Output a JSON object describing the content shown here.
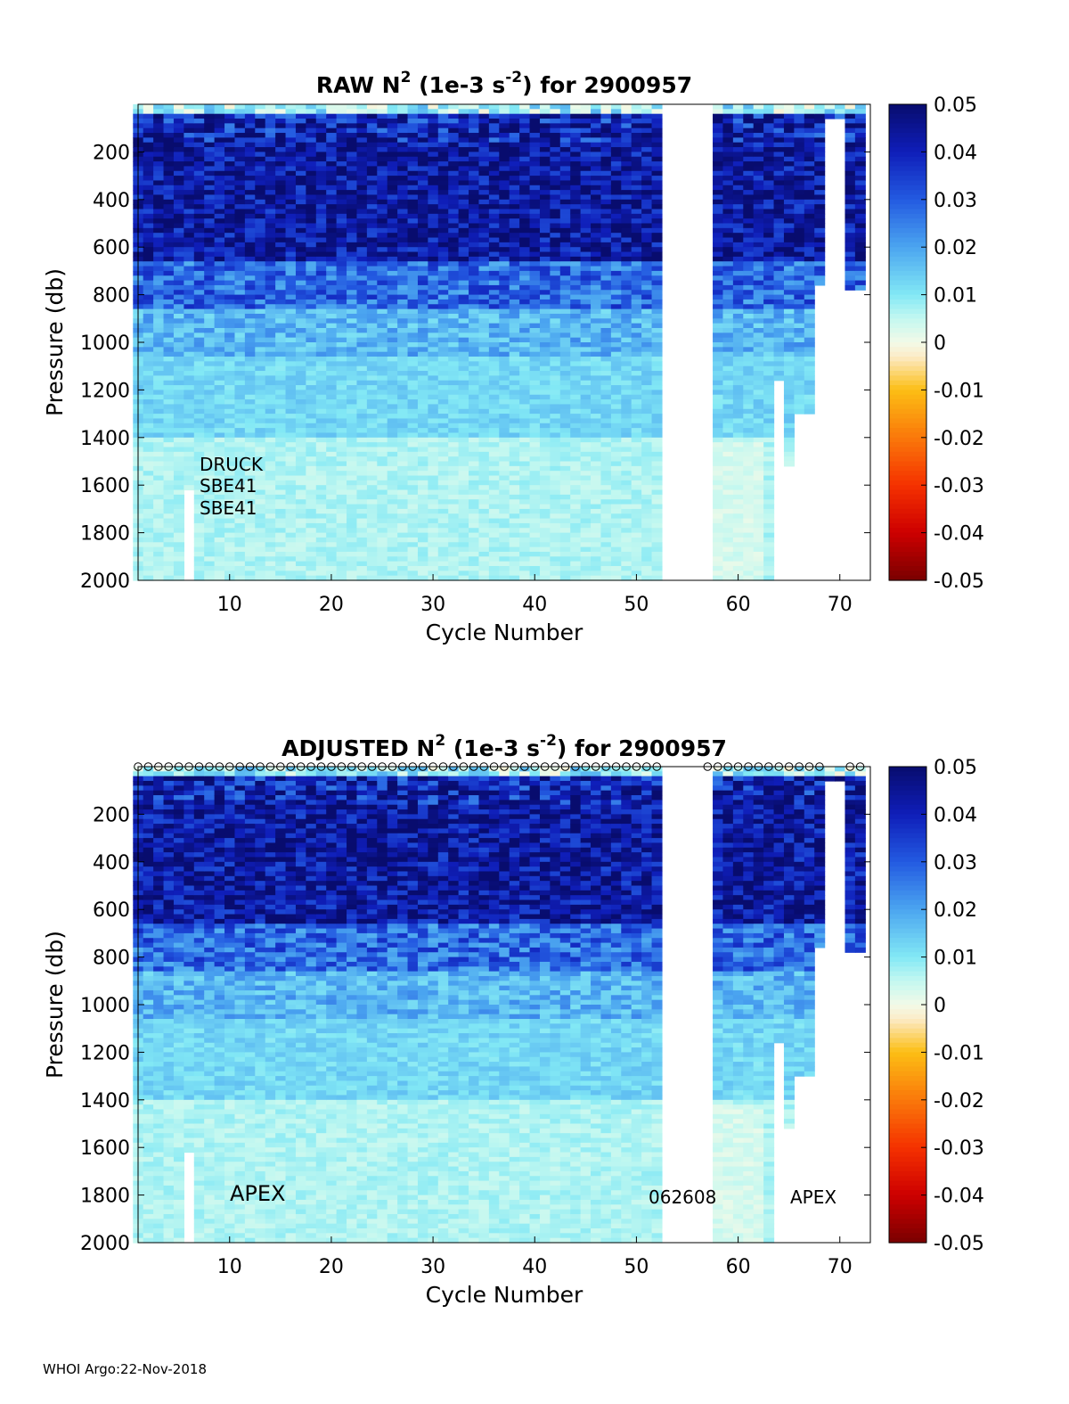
{
  "chart_data": [
    {
      "type": "heatmap",
      "title_prefix": "RAW N",
      "title_sup": "2",
      "title_mid": " (1e-3 s",
      "title_unit_sup": "-2",
      "title_suffix": ") for 2900957",
      "xlabel": "Cycle Number",
      "ylabel": "Pressure (db)",
      "xlim": [
        1,
        73
      ],
      "ylim": [
        2000,
        0
      ],
      "xticks": [
        10,
        20,
        30,
        40,
        50,
        60,
        70
      ],
      "yticks": [
        200,
        400,
        600,
        800,
        1000,
        1200,
        1400,
        1600,
        1800,
        2000
      ],
      "colorbar": {
        "min": -0.05,
        "max": 0.05,
        "ticks": [
          0.05,
          0.04,
          0.03,
          0.02,
          0.01,
          0,
          -0.01,
          -0.02,
          -0.03,
          -0.04,
          -0.05
        ]
      },
      "cycles_with_data": "1-52, 58-72",
      "gaps": [
        [
          53,
          57
        ]
      ],
      "annotations": [
        "DRUCK",
        "SBE41",
        "SBE41"
      ],
      "surface_markers": false
    },
    {
      "type": "heatmap",
      "title_prefix": "ADJUSTED N",
      "title_sup": "2",
      "title_mid": " (1e-3 s",
      "title_unit_sup": "-2",
      "title_suffix": ") for 2900957",
      "xlabel": "Cycle Number",
      "ylabel": "Pressure (db)",
      "xlim": [
        1,
        73
      ],
      "ylim": [
        2000,
        0
      ],
      "xticks": [
        10,
        20,
        30,
        40,
        50,
        60,
        70
      ],
      "yticks": [
        200,
        400,
        600,
        800,
        1000,
        1200,
        1400,
        1600,
        1800,
        2000
      ],
      "colorbar": {
        "min": -0.05,
        "max": 0.05,
        "ticks": [
          0.05,
          0.04,
          0.03,
          0.02,
          0.01,
          0,
          -0.01,
          -0.02,
          -0.03,
          -0.04,
          -0.05
        ]
      },
      "cycles_with_data": "1-52, 58-72",
      "gaps": [
        [
          53,
          57
        ]
      ],
      "annotations": [
        "APEX",
        "062608",
        "APEX"
      ],
      "surface_markers": true
    }
  ],
  "footer": "WHOI Argo:22-Nov-2018"
}
